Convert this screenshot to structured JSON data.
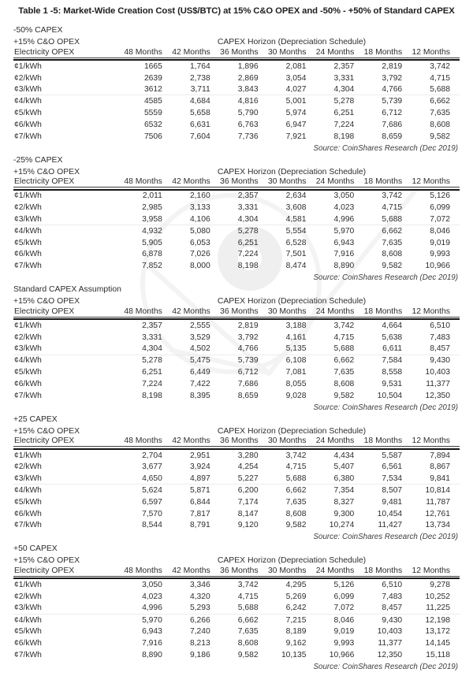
{
  "page_title": "Table 1 -5: Market-Wide Creation Cost (US$/BTC) at 15% C&O OPEX and -50% - +50% of Standard CAPEX",
  "watermark_icon": "coinshares-logo-watermark",
  "shared": {
    "opex_label": "+15% C&O OPEX",
    "horizon_label": "CAPEX Horizon (Depreciation Schedule)",
    "electricity_label": "Electricity OPEX",
    "months": [
      "48 Months",
      "42 Months",
      "36 Months",
      "30 Months",
      "24 Months",
      "18 Months",
      "12 Months"
    ],
    "source": "Source: CoinShares Research (Dec 2019)"
  },
  "sections": [
    {
      "label": "-50% CAPEX",
      "rows": [
        {
          "label": "¢1/kWh",
          "values": [
            "1665",
            "1,764",
            "1,896",
            "2,081",
            "2,357",
            "2,819",
            "3,742"
          ]
        },
        {
          "label": "¢2/kWh",
          "values": [
            "2639",
            "2,738",
            "2,869",
            "3,054",
            "3,331",
            "3,792",
            "4,715"
          ]
        },
        {
          "label": "¢3/kWh",
          "values": [
            "3612",
            "3,711",
            "3,843",
            "4,027",
            "4,304",
            "4,766",
            "5,688"
          ]
        },
        {
          "label": "¢4/kWh",
          "values": [
            "4585",
            "4,684",
            "4,816",
            "5,001",
            "5,278",
            "5,739",
            "6,662"
          ]
        },
        {
          "label": "¢5/kWh",
          "values": [
            "5559",
            "5,658",
            "5,790",
            "5,974",
            "6,251",
            "6,712",
            "7,635"
          ]
        },
        {
          "label": "¢6/kWh",
          "values": [
            "6532",
            "6,631",
            "6,763",
            "6,947",
            "7,224",
            "7,686",
            "8,608"
          ]
        },
        {
          "label": "¢7/kWh",
          "values": [
            "7506",
            "7,604",
            "7,736",
            "7,921",
            "8,198",
            "8,659",
            "9,582"
          ]
        }
      ]
    },
    {
      "label": "-25% CAPEX",
      "rows": [
        {
          "label": "¢1/kWh",
          "values": [
            "2,011",
            "2,160",
            "2,357",
            "2,634",
            "3,050",
            "3,742",
            "5,126"
          ]
        },
        {
          "label": "¢2/kWh",
          "values": [
            "2,985",
            "3,133",
            "3,331",
            "3,608",
            "4,023",
            "4,715",
            "6,099"
          ]
        },
        {
          "label": "¢3/kWh",
          "values": [
            "3,958",
            "4,106",
            "4,304",
            "4,581",
            "4,996",
            "5,688",
            "7,072"
          ]
        },
        {
          "label": "¢4/kWh",
          "values": [
            "4,932",
            "5,080",
            "5,278",
            "5,554",
            "5,970",
            "6,662",
            "8,046"
          ]
        },
        {
          "label": "¢5/kWh",
          "values": [
            "5,905",
            "6,053",
            "6,251",
            "6,528",
            "6,943",
            "7,635",
            "9,019"
          ]
        },
        {
          "label": "¢6/kWh",
          "values": [
            "6,878",
            "7,026",
            "7,224",
            "7,501",
            "7,916",
            "8,608",
            "9,993"
          ]
        },
        {
          "label": "¢7/kWh",
          "values": [
            "7,852",
            "8,000",
            "8,198",
            "8,474",
            "8,890",
            "9,582",
            "10,966"
          ]
        }
      ]
    },
    {
      "label": "Standard CAPEX Assumption",
      "rows": [
        {
          "label": "¢1/kWh",
          "values": [
            "2,357",
            "2,555",
            "2,819",
            "3,188",
            "3,742",
            "4,664",
            "6,510"
          ]
        },
        {
          "label": "¢2/kWh",
          "values": [
            "3,331",
            "3,529",
            "3,792",
            "4,161",
            "4,715",
            "5,638",
            "7,483"
          ]
        },
        {
          "label": "¢3/kWh",
          "values": [
            "4,304",
            "4,502",
            "4,766",
            "5,135",
            "5,688",
            "6,611",
            "8,457"
          ]
        },
        {
          "label": "¢4/kWh",
          "values": [
            "5,278",
            "5,475",
            "5,739",
            "6,108",
            "6,662",
            "7,584",
            "9,430"
          ]
        },
        {
          "label": "¢5/kWh",
          "values": [
            "6,251",
            "6,449",
            "6,712",
            "7,081",
            "7,635",
            "8,558",
            "10,403"
          ]
        },
        {
          "label": "¢6/kWh",
          "values": [
            "7,224",
            "7,422",
            "7,686",
            "8,055",
            "8,608",
            "9,531",
            "11,377"
          ]
        },
        {
          "label": "¢7/kWh",
          "values": [
            "8,198",
            "8,395",
            "8,659",
            "9,028",
            "9,582",
            "10,504",
            "12,350"
          ]
        }
      ]
    },
    {
      "label": "+25 CAPEX",
      "rows": [
        {
          "label": "¢1/kWh",
          "values": [
            "2,704",
            "2,951",
            "3,280",
            "3,742",
            "4,434",
            "5,587",
            "7,894"
          ]
        },
        {
          "label": "¢2/kWh",
          "values": [
            "3,677",
            "3,924",
            "4,254",
            "4,715",
            "5,407",
            "6,561",
            "8,867"
          ]
        },
        {
          "label": "¢3/kWh",
          "values": [
            "4,650",
            "4,897",
            "5,227",
            "5,688",
            "6,380",
            "7,534",
            "9,841"
          ]
        },
        {
          "label": "¢4/kWh",
          "values": [
            "5,624",
            "5,871",
            "6,200",
            "6,662",
            "7,354",
            "8,507",
            "10,814"
          ]
        },
        {
          "label": "¢5/kWh",
          "values": [
            "6,597",
            "6,844",
            "7,174",
            "7,635",
            "8,327",
            "9,481",
            "11,787"
          ]
        },
        {
          "label": "¢6/kWh",
          "values": [
            "7,570",
            "7,817",
            "8,147",
            "8,608",
            "9,300",
            "10,454",
            "12,761"
          ]
        },
        {
          "label": "¢7/kWh",
          "values": [
            "8,544",
            "8,791",
            "9,120",
            "9,582",
            "10,274",
            "11,427",
            "13,734"
          ]
        }
      ]
    },
    {
      "label": "+50 CAPEX",
      "rows": [
        {
          "label": "¢1/kWh",
          "values": [
            "3,050",
            "3,346",
            "3,742",
            "4,295",
            "5,126",
            "6,510",
            "9,278"
          ]
        },
        {
          "label": "¢2/kWh",
          "values": [
            "4,023",
            "4,320",
            "4,715",
            "5,269",
            "6,099",
            "7,483",
            "10,252"
          ]
        },
        {
          "label": "¢3/kWh",
          "values": [
            "4,996",
            "5,293",
            "5,688",
            "6,242",
            "7,072",
            "8,457",
            "11,225"
          ]
        },
        {
          "label": "¢4/kWh",
          "values": [
            "5,970",
            "6,266",
            "6,662",
            "7,215",
            "8,046",
            "9,430",
            "12,198"
          ]
        },
        {
          "label": "¢5/kWh",
          "values": [
            "6,943",
            "7,240",
            "7,635",
            "8,189",
            "9,019",
            "10,403",
            "13,172"
          ]
        },
        {
          "label": "¢6/kWh",
          "values": [
            "7,916",
            "8,213",
            "8,608",
            "9,162",
            "9,993",
            "11,377",
            "14,145"
          ]
        },
        {
          "label": "¢7/kWh",
          "values": [
            "8,890",
            "9,186",
            "9,582",
            "10,135",
            "10,966",
            "12,350",
            "15,118"
          ]
        }
      ]
    }
  ]
}
